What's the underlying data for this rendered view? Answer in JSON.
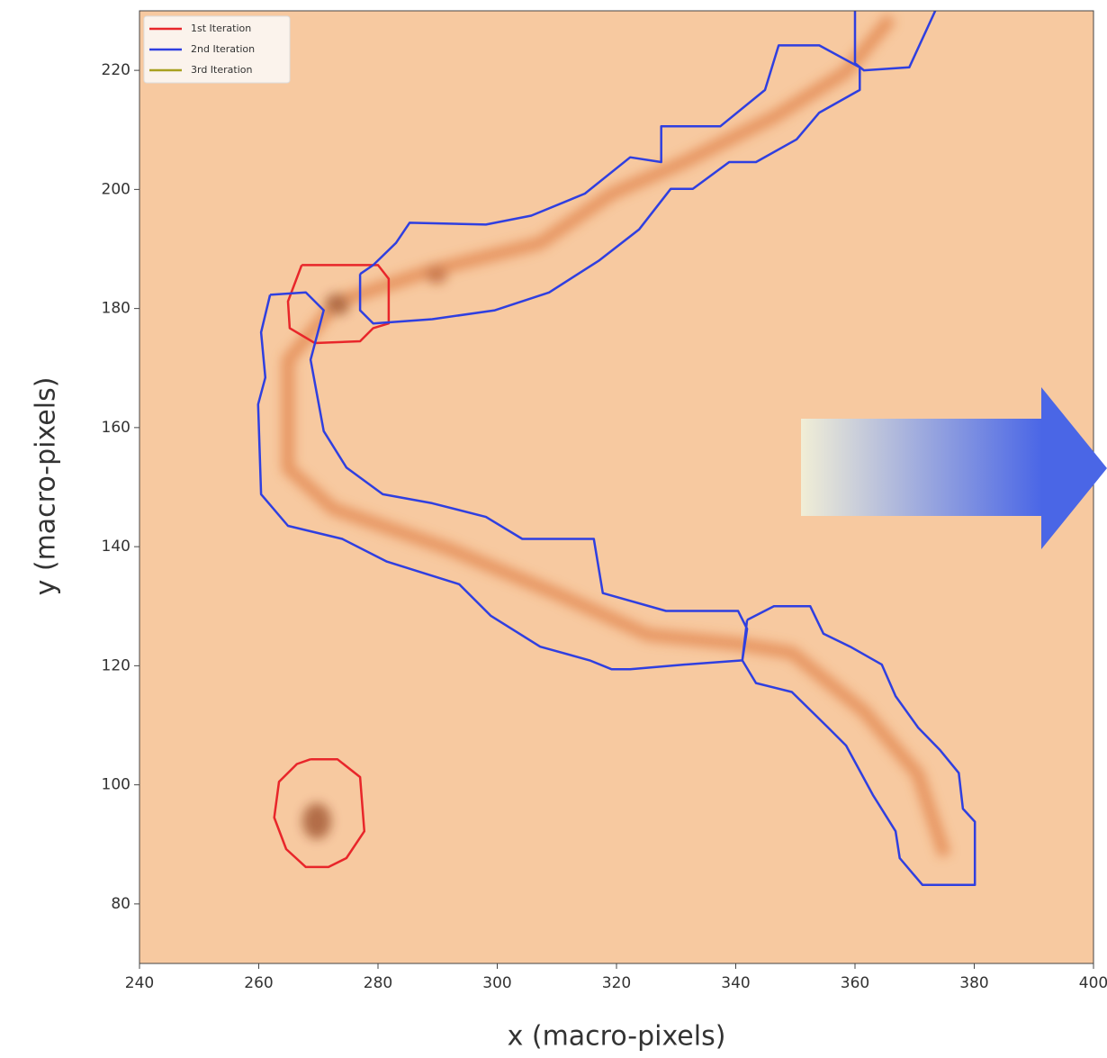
{
  "chart_data": {
    "type": "contour",
    "xlabel": "x (macro-pixels)",
    "ylabel": "y (macro-pixels)",
    "xlim": [
      240,
      400
    ],
    "ylim": [
      70,
      230
    ],
    "xticks": [
      240,
      260,
      280,
      300,
      320,
      340,
      360,
      380,
      400
    ],
    "yticks": [
      80,
      100,
      120,
      140,
      160,
      180,
      200,
      220
    ],
    "legend": "upper left",
    "series": [
      {
        "name": "1st Iteration",
        "color": "#e8262a",
        "x": [
          267.2,
          280,
          281.8,
          281.8,
          279.2,
          277,
          269.4,
          265.2,
          264.9,
          267.2,
          null,
          268.7,
          273.2,
          277,
          277.7,
          274.7,
          271.7,
          267.9,
          264.6,
          262.6,
          263.4,
          266.4,
          268.7
        ],
        "y": [
          187.3,
          187.3,
          185,
          177.5,
          176.7,
          174.5,
          174.2,
          176.7,
          181.2,
          187.3,
          null,
          104.3,
          104.3,
          101.3,
          92.2,
          87.7,
          86.2,
          86.2,
          89.2,
          94.5,
          100.5,
          103.5,
          104.3
        ]
      },
      {
        "name": "2nd Iteration",
        "color": "#2f3fe0",
        "x": [
          277,
          279.2,
          283,
          285.3,
          298.1,
          305.7,
          314.7,
          322.3,
          327.5,
          327.5,
          337.4,
          344.9,
          347.2,
          354,
          360.8,
          360.8,
          354,
          350.2,
          343.4,
          338.9,
          332.8,
          329.1,
          323.8,
          317,
          308.7,
          299.6,
          289.1,
          279.2,
          277,
          277,
          null,
          360,
          360,
          361.5,
          369.1,
          373.6,
          null,
          261.9,
          267.9,
          270.9,
          268.7,
          270.9,
          274.7,
          280.8,
          289.1,
          298.1,
          304.2,
          316.2,
          317.7,
          328.3,
          340.4,
          341.9,
          341.1,
          331.3,
          322.3,
          319.2,
          315.5,
          307.2,
          298.9,
          293.6,
          281.5,
          274,
          264.9,
          260.4,
          259.9,
          261.1,
          260.4,
          261.9,
          null,
          341.9,
          346.4,
          352.5,
          354.7,
          359.2,
          364.5,
          366.8,
          370.6,
          374.3,
          377.4,
          378.1,
          380.1,
          380.1,
          371.3,
          367.5,
          366.8,
          363,
          358.5,
          355.5,
          349.4,
          343.4,
          341.1,
          341.9
        ],
        "y": [
          185.8,
          187.3,
          191,
          194.4,
          194.1,
          195.6,
          199.3,
          205.4,
          204.6,
          210.6,
          210.6,
          216.7,
          224.2,
          224.2,
          220.5,
          216.7,
          212.9,
          208.4,
          204.6,
          204.6,
          200.1,
          200.1,
          193.3,
          188,
          182.7,
          179.7,
          178.2,
          177.5,
          179.7,
          185.8,
          null,
          230.3,
          221.2,
          220,
          220.5,
          230.3,
          null,
          182.3,
          182.7,
          179.7,
          171.4,
          159.4,
          153.3,
          148.8,
          147.3,
          145,
          141.3,
          141.3,
          132.2,
          129.2,
          129.2,
          126.2,
          120.9,
          120.2,
          119.4,
          119.4,
          120.9,
          123.2,
          128.4,
          133.7,
          137.5,
          141.3,
          143.5,
          148.8,
          163.9,
          168.4,
          176,
          182.3,
          null,
          127.7,
          130,
          130,
          125.4,
          123.2,
          120.2,
          114.9,
          109.6,
          105.8,
          102,
          96,
          93.8,
          83.2,
          83.2,
          87.7,
          92.2,
          98.3,
          106.6,
          109.6,
          115.6,
          117.1,
          120.9,
          127.7
        ]
      },
      {
        "name": "3rd Iteration",
        "color": "#a8a020",
        "x": [],
        "y": []
      }
    ]
  }
}
